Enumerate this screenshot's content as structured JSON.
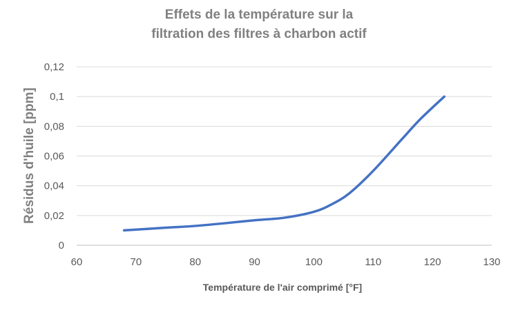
{
  "chart_data": {
    "type": "line",
    "title_line1": "Effets de la température sur la",
    "title_line2": "filtration des filtres à charbon actif",
    "xlabel": "Température de l'air comprimé [°F]",
    "ylabel": "Résidus d'huile [ppm]",
    "xlim": [
      60,
      130
    ],
    "ylim": [
      0,
      0.12
    ],
    "x_ticks": [
      60,
      70,
      80,
      90,
      100,
      110,
      120,
      130
    ],
    "x_tick_labels": [
      "60",
      "70",
      "80",
      "90",
      "100",
      "110",
      "120",
      "130"
    ],
    "y_ticks": [
      0,
      0.02,
      0.04,
      0.06,
      0.08,
      0.1,
      0.12
    ],
    "y_tick_labels": [
      "0",
      "0,02",
      "0,04",
      "0,06",
      "0,08",
      "0,1",
      "0,12"
    ],
    "grid": "horizontal",
    "line_color": "#4472C4",
    "grid_color": "#d9d9d9",
    "series": [
      {
        "x": [
          68,
          75,
          80,
          85,
          90,
          95,
          100,
          103,
          106,
          110,
          115,
          118,
          122
        ],
        "y": [
          0.01,
          0.0118,
          0.013,
          0.0148,
          0.0168,
          0.0185,
          0.0225,
          0.0275,
          0.035,
          0.05,
          0.072,
          0.085,
          0.1
        ]
      }
    ]
  }
}
